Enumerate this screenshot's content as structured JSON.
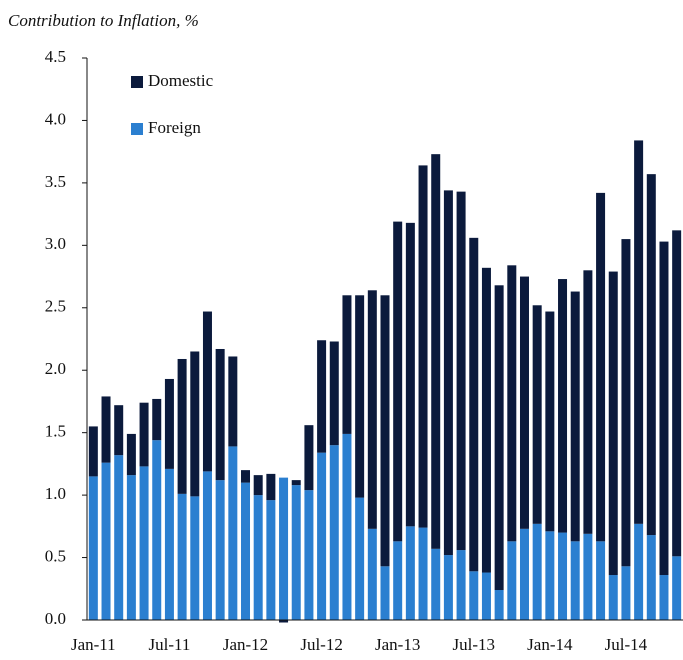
{
  "chart_data": {
    "type": "stacked_bar",
    "title": "Contribution to Inflation, %",
    "categories": [
      "Jan-11",
      null,
      null,
      null,
      null,
      null,
      "Jul-11",
      null,
      null,
      null,
      null,
      null,
      "Jan-12",
      null,
      null,
      null,
      null,
      null,
      "Jul-12",
      null,
      null,
      null,
      null,
      null,
      "Jan-13",
      null,
      null,
      null,
      null,
      null,
      "Jul-13",
      null,
      null,
      null,
      null,
      null,
      "Jan-14",
      null,
      null,
      null,
      null,
      null,
      "Jul-14",
      null,
      null,
      null,
      null
    ],
    "series": [
      {
        "name": "Foreign",
        "color": "#2b7fd0",
        "values": [
          1.15,
          1.26,
          1.32,
          1.16,
          1.23,
          1.44,
          1.21,
          1.01,
          0.99,
          1.19,
          1.12,
          1.39,
          1.1,
          1.0,
          0.96,
          1.14,
          1.08,
          1.04,
          1.34,
          1.4,
          1.49,
          0.98,
          0.73,
          0.43,
          0.63,
          0.75,
          0.74,
          0.57,
          0.52,
          0.56,
          0.39,
          0.38,
          0.24,
          0.63,
          0.73,
          0.77,
          0.71,
          0.7,
          0.63,
          0.69,
          0.63,
          0.36,
          0.43,
          0.77,
          0.68,
          0.36,
          0.51
        ]
      },
      {
        "name": "Domestic",
        "color": "#0b1a3c",
        "values": [
          0.4,
          0.53,
          0.4,
          0.33,
          0.51,
          0.33,
          0.72,
          1.08,
          1.16,
          1.28,
          1.05,
          0.72,
          0.1,
          0.16,
          0.21,
          -0.02,
          0.04,
          0.52,
          0.9,
          0.83,
          1.11,
          1.62,
          1.91,
          2.17,
          2.56,
          2.43,
          2.9,
          3.16,
          2.92,
          2.87,
          2.67,
          2.44,
          2.44,
          2.21,
          2.02,
          1.75,
          1.76,
          2.03,
          2.0,
          2.11,
          2.79,
          2.43,
          2.62,
          3.07,
          2.89,
          2.67,
          2.61
        ]
      }
    ],
    "ylim": [
      0,
      4.5
    ],
    "yticks": [
      {
        "value": 0,
        "label": "0.0"
      },
      0.5,
      {
        "value": 1,
        "label": "1.0"
      },
      1.5,
      {
        "value": 2,
        "label": "2.0"
      },
      2.5,
      {
        "value": 3,
        "label": "3.0"
      },
      3.5,
      {
        "value": 4,
        "label": "4.0"
      },
      4.5
    ],
    "grid": false,
    "legend": "top-left"
  }
}
